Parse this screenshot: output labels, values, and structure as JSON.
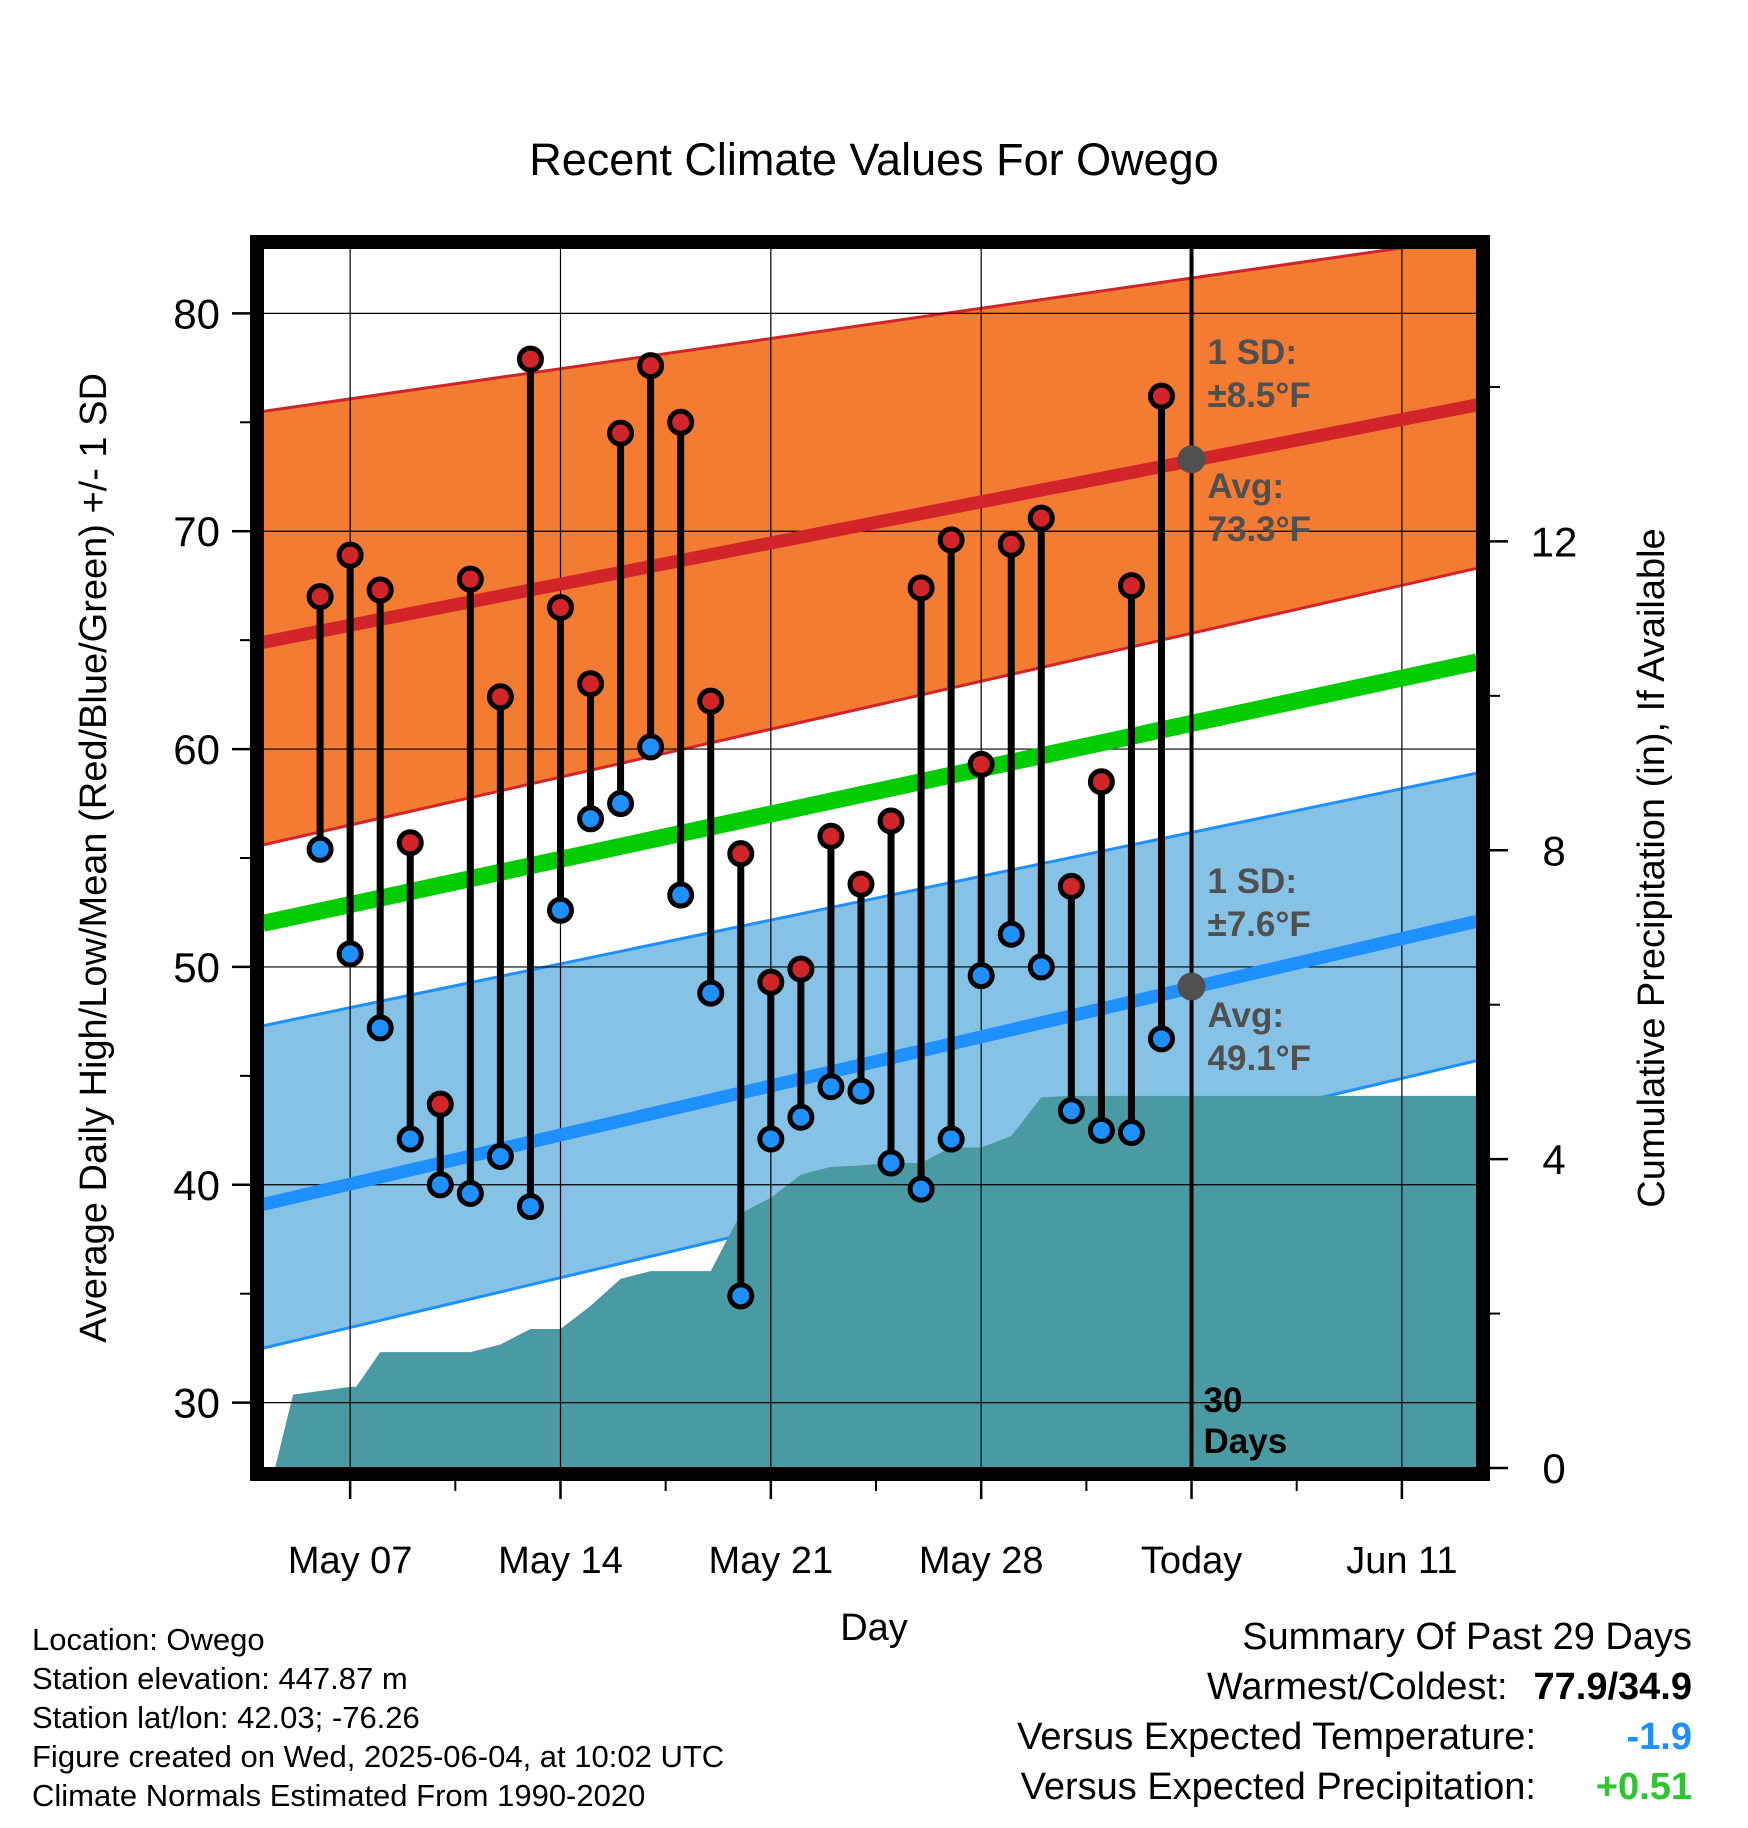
{
  "chart_data": {
    "type": "line",
    "title": "Recent Climate Values For Owego",
    "xlabel": "Day",
    "ylabel": "Average Daily High/Low/Mean (Red/Blue/Green) +/- 1 SD",
    "y2label": "Cumulative Precipitation (in), If Available",
    "x_range_days": [
      -1.9,
      38.5
    ],
    "ylim": [
      27,
      83
    ],
    "y2lim": [
      0,
      15.8
    ],
    "y_ticks": [
      "30",
      "40",
      "50",
      "60",
      "70",
      "80"
    ],
    "y2_ticks": [
      "0",
      "4",
      "8",
      "12"
    ],
    "y2_tick_values": [
      0,
      4,
      8,
      12
    ],
    "x_ticks": [
      {
        "day": 1,
        "label": "May 07"
      },
      {
        "day": 8,
        "label": "May 14"
      },
      {
        "day": 15,
        "label": "May 21"
      },
      {
        "day": 22,
        "label": "May 28"
      },
      {
        "day": 29,
        "label": "Today"
      },
      {
        "day": 36,
        "label": "Jun 11"
      }
    ],
    "today_day": 29,
    "today_label": [
      "30",
      "Days"
    ],
    "grid": true,
    "normal_high": {
      "avg_start": 64.9,
      "avg_end": 75.8,
      "sd_upper_start": 75.5,
      "sd_upper_end": 83.5,
      "sd_lower_start": 55.6,
      "sd_lower_end": 68.3,
      "sd_label": [
        "1 SD:",
        "±8.5°F"
      ],
      "avg_label": [
        "Avg:",
        "73.3°F"
      ],
      "today_avg": 73.3
    },
    "normal_low": {
      "avg_start": 39.1,
      "avg_end": 52.1,
      "sd_upper_start": 47.3,
      "sd_upper_end": 58.9,
      "sd_lower_start": 32.5,
      "sd_lower_end": 45.7,
      "sd_label": [
        "1 SD:",
        "±7.6°F"
      ],
      "avg_label": [
        "Avg:",
        "49.1°F"
      ],
      "today_avg": 49.1
    },
    "normal_mean": {
      "start": 52.0,
      "end": 64.0
    },
    "series": [
      {
        "name": "High",
        "values": [
          67.0,
          68.9,
          67.3,
          55.7,
          43.7,
          67.8,
          62.4,
          77.9,
          66.5,
          63.0,
          74.5,
          77.6,
          75.0,
          62.2,
          55.2,
          49.3,
          49.9,
          56.0,
          53.8,
          56.7,
          67.4,
          69.6,
          59.3,
          69.4,
          70.6,
          53.7,
          58.5,
          67.5,
          76.2
        ]
      },
      {
        "name": "Low",
        "values": [
          55.4,
          50.6,
          47.2,
          42.1,
          40.0,
          39.6,
          41.3,
          39.0,
          52.6,
          56.8,
          57.5,
          60.1,
          53.3,
          48.8,
          34.9,
          42.1,
          43.1,
          44.5,
          44.3,
          41.0,
          39.8,
          42.1,
          49.6,
          51.5,
          50.0,
          43.4,
          42.5,
          42.4,
          46.7
        ]
      }
    ],
    "precip_cumulative": {
      "x": [
        -1.9,
        -1.5,
        -0.9,
        1.0,
        1.2,
        2.0,
        3.0,
        4.0,
        5.0,
        6.0,
        7.0,
        8.0,
        9.0,
        10.0,
        11.0,
        12.0,
        13.0,
        14.0,
        15.0,
        16.0,
        17.0,
        18.0,
        19.0,
        20.0,
        21.0,
        22.0,
        23.0,
        24.0,
        25.0,
        26.0,
        27.0,
        28.0,
        29.0,
        38.5
      ],
      "values": [
        0.0,
        0.0,
        0.95,
        1.05,
        1.05,
        1.5,
        1.5,
        1.5,
        1.5,
        1.6,
        1.8,
        1.8,
        2.1,
        2.45,
        2.55,
        2.55,
        2.55,
        3.3,
        3.5,
        3.8,
        3.9,
        3.92,
        3.95,
        3.95,
        4.15,
        4.15,
        4.3,
        4.8,
        4.82,
        4.82,
        4.82,
        4.82,
        4.82,
        4.82
      ]
    },
    "colors": {
      "high_band": "#f47b32",
      "high_avg": "#d22529",
      "low_band": "#85c2e6",
      "low_avg": "#1e90ff",
      "mean": "#00cc00",
      "precip": "#4a9aa3",
      "annotation": "#505050"
    }
  },
  "info": {
    "location": "Location: Owego",
    "elevation": "Station elevation: 447.87 m",
    "latlon": "Station lat/lon: 42.03; -76.26",
    "created": "Figure created on Wed, 2025-06-04, at 10:02 UTC",
    "normals": "Climate Normals Estimated From 1990-2020"
  },
  "summary": {
    "title": "Summary Of Past 29 Days",
    "warm_cold_label": "Warmest/Coldest:",
    "warm_cold_value": "77.9/34.9",
    "temp_label": "Versus Expected Temperature:",
    "temp_value": "-1.9",
    "temp_color": "#1e90ff",
    "precip_label": "Versus Expected Precipitation:",
    "precip_value": "+0.51",
    "precip_color": "#2ec52e"
  }
}
